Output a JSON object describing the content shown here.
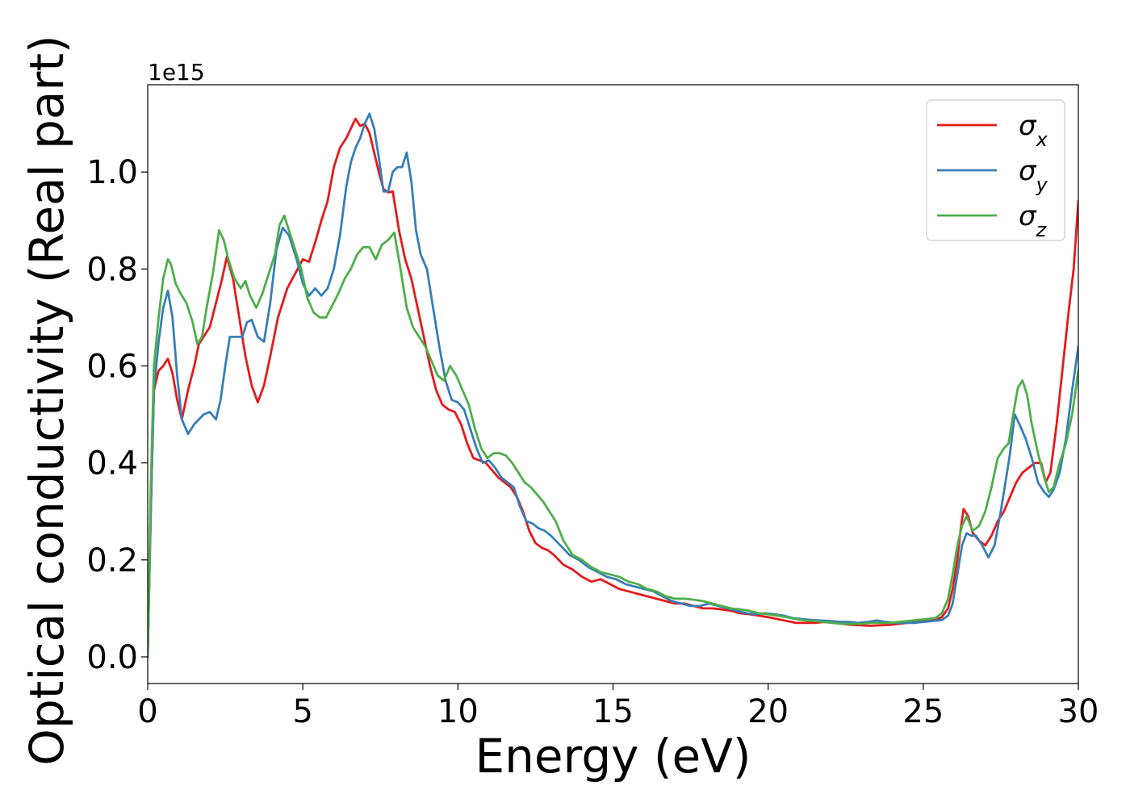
{
  "chart_data": {
    "type": "line",
    "xlabel": "Energy (eV)",
    "ylabel": "Optical conductivity (Real part)",
    "y_offset_label": "1e15",
    "xlim": [
      0,
      30
    ],
    "ylim": [
      -0.055,
      1.18
    ],
    "x_ticks": [
      0,
      5,
      10,
      15,
      20,
      25,
      30
    ],
    "x_tick_labels": [
      "0",
      "5",
      "10",
      "15",
      "20",
      "25",
      "30"
    ],
    "y_ticks": [
      0.0,
      0.2,
      0.4,
      0.6,
      0.8,
      1.0
    ],
    "y_tick_labels": [
      "0.0",
      "0.2",
      "0.4",
      "0.6",
      "0.8",
      "1.0"
    ],
    "grid": false,
    "legend_position": "top-right",
    "series": [
      {
        "name": "σx",
        "legend_base": "σ",
        "legend_sub": "x",
        "color": "#e41a1c",
        "x": [
          0,
          0.1,
          0.2,
          0.35,
          0.5,
          0.65,
          0.8,
          0.95,
          1.1,
          1.3,
          1.5,
          1.65,
          1.8,
          2.0,
          2.2,
          2.4,
          2.55,
          2.75,
          2.95,
          3.15,
          3.35,
          3.55,
          3.75,
          3.95,
          4.2,
          4.5,
          4.75,
          5.0,
          5.2,
          5.4,
          5.6,
          5.8,
          6.0,
          6.2,
          6.4,
          6.55,
          6.7,
          6.85,
          7.0,
          7.15,
          7.3,
          7.45,
          7.6,
          7.75,
          7.9,
          8.1,
          8.3,
          8.5,
          8.7,
          8.9,
          9.1,
          9.3,
          9.5,
          9.7,
          9.9,
          10.1,
          10.3,
          10.5,
          10.7,
          10.9,
          11.1,
          11.3,
          11.5,
          11.7,
          11.9,
          12.1,
          12.3,
          12.5,
          12.7,
          12.9,
          13.1,
          13.4,
          13.7,
          14.0,
          14.3,
          14.6,
          14.9,
          15.2,
          15.5,
          15.8,
          16.1,
          16.4,
          16.7,
          17.0,
          17.3,
          17.6,
          17.9,
          18.2,
          18.5,
          18.8,
          19.1,
          19.4,
          19.7,
          20.0,
          20.3,
          20.6,
          20.9,
          21.2,
          21.5,
          21.8,
          22.1,
          22.4,
          22.7,
          23.0,
          23.3,
          23.6,
          23.9,
          24.2,
          24.5,
          24.8,
          25.1,
          25.4,
          25.6,
          25.8,
          25.95,
          26.1,
          26.2,
          26.3,
          26.45,
          26.6,
          26.8,
          27.0,
          27.2,
          27.4,
          27.6,
          27.8,
          28.0,
          28.2,
          28.4,
          28.6,
          28.8,
          28.95,
          29.1,
          29.3,
          29.5,
          29.7,
          29.85,
          30.0
        ],
        "y": [
          0.0,
          0.3,
          0.55,
          0.59,
          0.6,
          0.615,
          0.585,
          0.53,
          0.49,
          0.55,
          0.6,
          0.645,
          0.66,
          0.68,
          0.73,
          0.78,
          0.825,
          0.78,
          0.7,
          0.62,
          0.56,
          0.525,
          0.56,
          0.62,
          0.7,
          0.76,
          0.79,
          0.82,
          0.815,
          0.855,
          0.9,
          0.94,
          1.01,
          1.05,
          1.07,
          1.09,
          1.11,
          1.095,
          1.1,
          1.08,
          1.04,
          1.0,
          0.965,
          0.958,
          0.96,
          0.88,
          0.82,
          0.78,
          0.72,
          0.66,
          0.6,
          0.55,
          0.52,
          0.51,
          0.505,
          0.48,
          0.44,
          0.41,
          0.405,
          0.4,
          0.385,
          0.37,
          0.36,
          0.35,
          0.33,
          0.3,
          0.26,
          0.235,
          0.225,
          0.22,
          0.21,
          0.19,
          0.18,
          0.165,
          0.155,
          0.16,
          0.15,
          0.14,
          0.135,
          0.13,
          0.125,
          0.12,
          0.115,
          0.11,
          0.11,
          0.105,
          0.1,
          0.1,
          0.098,
          0.095,
          0.09,
          0.088,
          0.085,
          0.082,
          0.078,
          0.074,
          0.07,
          0.07,
          0.07,
          0.072,
          0.07,
          0.068,
          0.066,
          0.065,
          0.064,
          0.065,
          0.066,
          0.068,
          0.07,
          0.072,
          0.074,
          0.076,
          0.082,
          0.1,
          0.14,
          0.2,
          0.26,
          0.305,
          0.29,
          0.255,
          0.24,
          0.23,
          0.25,
          0.28,
          0.3,
          0.33,
          0.36,
          0.38,
          0.39,
          0.4,
          0.4,
          0.36,
          0.38,
          0.48,
          0.6,
          0.72,
          0.8,
          0.94
        ]
      },
      {
        "name": "σy",
        "legend_base": "σ",
        "legend_sub": "y",
        "color": "#377eb8",
        "x": [
          0,
          0.1,
          0.2,
          0.35,
          0.5,
          0.65,
          0.8,
          0.95,
          1.1,
          1.3,
          1.5,
          1.65,
          1.8,
          2.0,
          2.2,
          2.35,
          2.5,
          2.65,
          2.85,
          3.05,
          3.2,
          3.35,
          3.55,
          3.75,
          3.95,
          4.15,
          4.35,
          4.55,
          4.8,
          5.0,
          5.2,
          5.4,
          5.6,
          5.8,
          6.0,
          6.2,
          6.4,
          6.55,
          6.7,
          6.85,
          7.0,
          7.15,
          7.3,
          7.45,
          7.6,
          7.75,
          7.9,
          8.05,
          8.2,
          8.35,
          8.5,
          8.65,
          8.8,
          9.0,
          9.2,
          9.4,
          9.6,
          9.8,
          10.0,
          10.2,
          10.4,
          10.6,
          10.8,
          11.0,
          11.2,
          11.4,
          11.6,
          11.8,
          12.0,
          12.2,
          12.4,
          12.6,
          12.8,
          13.0,
          13.3,
          13.6,
          13.9,
          14.2,
          14.5,
          14.8,
          15.1,
          15.4,
          15.7,
          16.0,
          16.3,
          16.6,
          16.9,
          17.2,
          17.5,
          17.8,
          18.1,
          18.4,
          18.7,
          19.0,
          19.3,
          19.6,
          19.9,
          20.2,
          20.5,
          20.8,
          21.1,
          21.4,
          21.7,
          22.0,
          22.3,
          22.6,
          22.9,
          23.2,
          23.5,
          23.8,
          24.1,
          24.4,
          24.7,
          25.0,
          25.3,
          25.6,
          25.8,
          25.95,
          26.1,
          26.25,
          26.4,
          26.55,
          26.7,
          26.9,
          27.1,
          27.3,
          27.5,
          27.65,
          27.8,
          27.95,
          28.1,
          28.3,
          28.5,
          28.7,
          28.9,
          29.05,
          29.2,
          29.4,
          29.6,
          29.8,
          30.0
        ],
        "y": [
          0.0,
          0.3,
          0.55,
          0.65,
          0.72,
          0.755,
          0.7,
          0.58,
          0.49,
          0.46,
          0.48,
          0.49,
          0.5,
          0.505,
          0.49,
          0.53,
          0.6,
          0.66,
          0.66,
          0.66,
          0.69,
          0.695,
          0.66,
          0.65,
          0.73,
          0.84,
          0.885,
          0.87,
          0.82,
          0.77,
          0.745,
          0.76,
          0.745,
          0.76,
          0.8,
          0.87,
          0.97,
          1.02,
          1.05,
          1.07,
          1.1,
          1.12,
          1.09,
          1.03,
          0.96,
          0.96,
          1.0,
          1.01,
          1.01,
          1.04,
          0.98,
          0.88,
          0.83,
          0.8,
          0.72,
          0.64,
          0.57,
          0.53,
          0.525,
          0.51,
          0.47,
          0.43,
          0.4,
          0.405,
          0.39,
          0.37,
          0.36,
          0.35,
          0.31,
          0.28,
          0.275,
          0.265,
          0.26,
          0.25,
          0.23,
          0.21,
          0.2,
          0.185,
          0.175,
          0.165,
          0.16,
          0.15,
          0.145,
          0.14,
          0.135,
          0.125,
          0.115,
          0.11,
          0.105,
          0.105,
          0.11,
          0.105,
          0.1,
          0.095,
          0.09,
          0.088,
          0.09,
          0.088,
          0.085,
          0.08,
          0.078,
          0.076,
          0.075,
          0.074,
          0.072,
          0.072,
          0.07,
          0.072,
          0.075,
          0.072,
          0.07,
          0.07,
          0.07,
          0.072,
          0.074,
          0.076,
          0.085,
          0.11,
          0.17,
          0.23,
          0.255,
          0.25,
          0.25,
          0.23,
          0.205,
          0.23,
          0.3,
          0.36,
          0.42,
          0.5,
          0.48,
          0.45,
          0.41,
          0.36,
          0.34,
          0.33,
          0.345,
          0.38,
          0.45,
          0.55,
          0.64
        ]
      },
      {
        "name": "σz",
        "legend_base": "σ",
        "legend_sub": "z",
        "color": "#4daf4a",
        "x": [
          0,
          0.1,
          0.2,
          0.35,
          0.5,
          0.65,
          0.75,
          0.9,
          1.05,
          1.25,
          1.45,
          1.6,
          1.75,
          1.9,
          2.1,
          2.3,
          2.45,
          2.6,
          2.8,
          3.0,
          3.15,
          3.3,
          3.5,
          3.7,
          3.9,
          4.1,
          4.25,
          4.4,
          4.55,
          4.75,
          4.95,
          5.15,
          5.35,
          5.55,
          5.75,
          5.95,
          6.15,
          6.35,
          6.55,
          6.75,
          6.95,
          7.15,
          7.35,
          7.55,
          7.75,
          7.95,
          8.15,
          8.35,
          8.55,
          8.75,
          8.95,
          9.15,
          9.35,
          9.55,
          9.75,
          9.95,
          10.15,
          10.35,
          10.55,
          10.75,
          10.95,
          11.15,
          11.35,
          11.55,
          11.75,
          11.95,
          12.15,
          12.35,
          12.55,
          12.75,
          12.95,
          13.15,
          13.4,
          13.7,
          14.0,
          14.3,
          14.6,
          14.9,
          15.2,
          15.5,
          15.8,
          16.1,
          16.4,
          16.7,
          17.0,
          17.3,
          17.6,
          17.9,
          18.2,
          18.5,
          18.8,
          19.1,
          19.4,
          19.7,
          20.0,
          20.3,
          20.6,
          20.9,
          21.2,
          21.5,
          21.8,
          22.1,
          22.4,
          22.7,
          23.0,
          23.3,
          23.6,
          23.9,
          24.2,
          24.5,
          24.8,
          25.1,
          25.4,
          25.6,
          25.8,
          25.95,
          26.1,
          26.25,
          26.4,
          26.6,
          26.8,
          27.0,
          27.2,
          27.4,
          27.6,
          27.75,
          27.9,
          28.05,
          28.2,
          28.35,
          28.5,
          28.7,
          28.9,
          29.05,
          29.2,
          29.4,
          29.6,
          29.8,
          30.0
        ],
        "y": [
          0.0,
          0.35,
          0.6,
          0.7,
          0.78,
          0.82,
          0.81,
          0.77,
          0.75,
          0.73,
          0.69,
          0.645,
          0.66,
          0.72,
          0.79,
          0.88,
          0.86,
          0.82,
          0.78,
          0.76,
          0.775,
          0.745,
          0.72,
          0.75,
          0.79,
          0.83,
          0.89,
          0.91,
          0.88,
          0.84,
          0.8,
          0.74,
          0.71,
          0.7,
          0.7,
          0.725,
          0.75,
          0.78,
          0.8,
          0.83,
          0.845,
          0.845,
          0.82,
          0.85,
          0.86,
          0.875,
          0.8,
          0.72,
          0.68,
          0.66,
          0.64,
          0.61,
          0.58,
          0.57,
          0.6,
          0.58,
          0.55,
          0.52,
          0.47,
          0.43,
          0.41,
          0.42,
          0.42,
          0.415,
          0.4,
          0.38,
          0.36,
          0.35,
          0.335,
          0.32,
          0.3,
          0.28,
          0.24,
          0.21,
          0.2,
          0.185,
          0.175,
          0.17,
          0.165,
          0.155,
          0.15,
          0.14,
          0.135,
          0.125,
          0.12,
          0.12,
          0.118,
          0.115,
          0.11,
          0.105,
          0.1,
          0.098,
          0.095,
          0.09,
          0.088,
          0.085,
          0.082,
          0.078,
          0.075,
          0.074,
          0.072,
          0.07,
          0.068,
          0.068,
          0.068,
          0.07,
          0.07,
          0.07,
          0.072,
          0.074,
          0.076,
          0.078,
          0.08,
          0.09,
          0.12,
          0.17,
          0.23,
          0.27,
          0.29,
          0.26,
          0.27,
          0.3,
          0.35,
          0.41,
          0.43,
          0.44,
          0.5,
          0.555,
          0.57,
          0.54,
          0.48,
          0.42,
          0.37,
          0.34,
          0.35,
          0.4,
          0.44,
          0.5,
          0.59
        ]
      }
    ]
  }
}
